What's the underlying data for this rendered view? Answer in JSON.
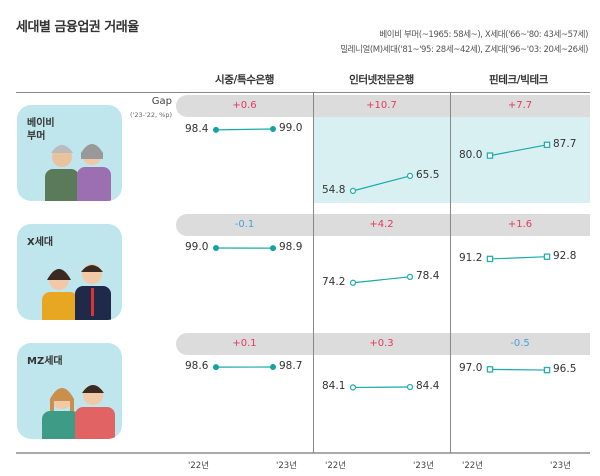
{
  "title": "세대별 금융업권 거래율",
  "notes": [
    "베이비 부머(~1965: 58세~), X세대('66~'80: 43세~57세)",
    "밀레니얼(M)세대('81~'95: 28세~42세), Z세대('96~'03: 20세~26세)"
  ],
  "gap_label": "Gap",
  "gap_sublabel": "('23-'22, %p)",
  "colors": {
    "positive": "#e8385f",
    "negative": "#4aa3d8",
    "bank_line": "#1aaaa8",
    "bank_marker": "#14a39f",
    "other_marker": "#27aeb0",
    "highlight_bg": "#d8f0f2",
    "gap_bg": "#dcdcdc",
    "card_bg": "#bfe6ec"
  },
  "chart_data": {
    "type": "line",
    "title": "세대별 금융업권 거래율",
    "columns": [
      "시중/특수은행",
      "인터넷전문은행",
      "핀테크/빅테크"
    ],
    "x": [
      "'22년",
      "'23년"
    ],
    "x_ticks": [
      "'22년",
      "'23년",
      "'22년",
      "'23년",
      "'22년",
      "'23년"
    ],
    "rows": [
      {
        "label": "베이비\n부머",
        "gaps": [
          "+0.6",
          "+10.7",
          "+7.7"
        ],
        "series": [
          [
            98.4,
            99.0
          ],
          [
            54.8,
            65.5
          ],
          [
            80.0,
            87.7
          ]
        ],
        "labels": [
          [
            "98.4",
            "99.0"
          ],
          [
            "54.8",
            "65.5"
          ],
          [
            "80.0",
            "87.7"
          ]
        ]
      },
      {
        "label": "X세대",
        "gaps": [
          "-0.1",
          "+4.2",
          "+1.6"
        ],
        "series": [
          [
            99.0,
            98.9
          ],
          [
            74.2,
            78.4
          ],
          [
            91.2,
            92.8
          ]
        ],
        "labels": [
          [
            "99.0",
            "98.9"
          ],
          [
            "74.2",
            "78.4"
          ],
          [
            "91.2",
            "92.8"
          ]
        ]
      },
      {
        "label": "MZ세대",
        "gaps": [
          "+0.1",
          "+0.3",
          "-0.5"
        ],
        "series": [
          [
            98.6,
            98.7
          ],
          [
            84.1,
            84.4
          ],
          [
            97.0,
            96.5
          ]
        ],
        "labels": [
          [
            "98.6",
            "98.7"
          ],
          [
            "84.1",
            "84.4"
          ],
          [
            "97.0",
            "96.5"
          ]
        ]
      }
    ]
  }
}
